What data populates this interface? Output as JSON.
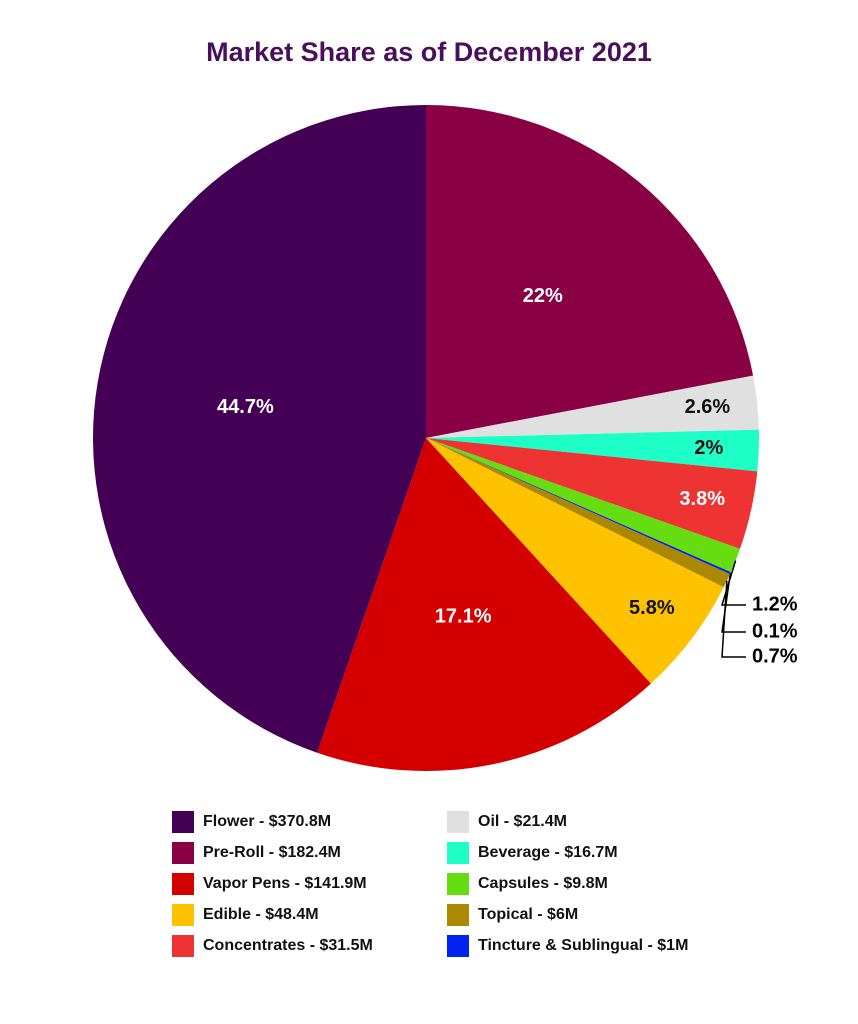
{
  "chart_data": {
    "type": "pie",
    "title": "Market Share as of December 2021",
    "categories": [
      "Pre-Roll - $182.4M",
      "Oil - $21.4M",
      "Beverage - $16.7M",
      "Concentrates - $31.5M",
      "Capsules - $9.8M",
      "Tincture & Sublingual - $1M",
      "Topical - $6M",
      "Edible - $48.4M",
      "Vapor Pens - $141.9M",
      "Flower - $370.8M"
    ],
    "values": [
      22,
      2.6,
      2,
      3.8,
      1.2,
      0.1,
      0.7,
      5.8,
      17.1,
      44.7
    ],
    "value_labels": [
      "22%",
      "2.6%",
      "2%",
      "3.8%",
      "1.2%",
      "0.1%",
      "0.7%",
      "5.8%",
      "17.1%",
      "44.7%"
    ],
    "colors": [
      "#8a0045",
      "#e0e0e0",
      "#1effc8",
      "#ee3333",
      "#66dd11",
      "#0022ee",
      "#aa8800",
      "#ffc200",
      "#d40000",
      "#440055"
    ]
  }
}
